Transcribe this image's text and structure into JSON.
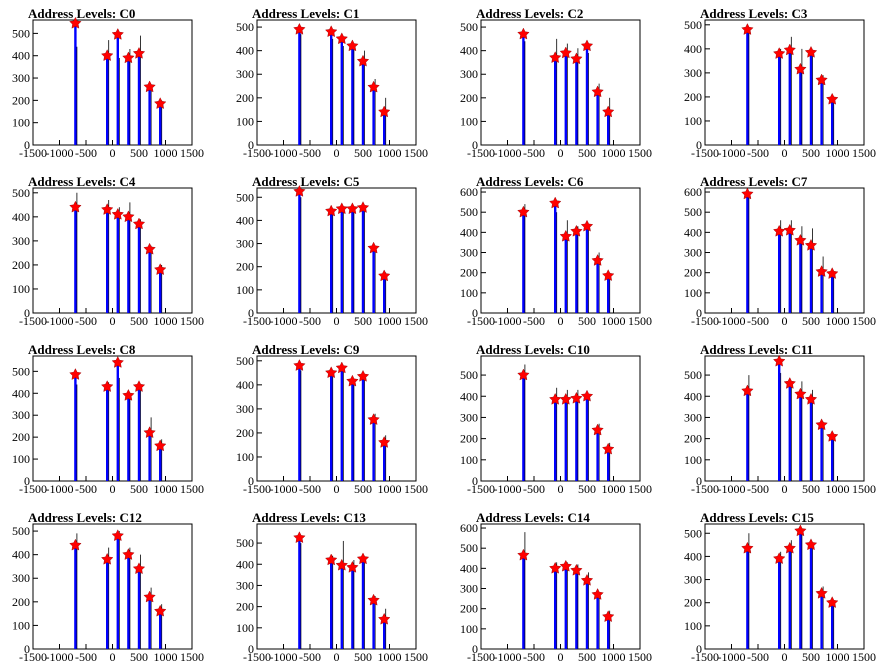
{
  "chart_data": [
    {
      "type": "bar",
      "title": "Address Levels: C0",
      "xlim": [
        -1500,
        1500
      ],
      "ylim": [
        0,
        560
      ],
      "xticks": [
        -1500,
        -1000,
        -500,
        0,
        500,
        1000,
        1500
      ],
      "yticks": [
        0,
        100,
        200,
        300,
        400,
        500
      ],
      "peaks": [
        {
          "x": -700,
          "y": 545,
          "bar": 440
        },
        {
          "x": -100,
          "y": 400,
          "bar": 470
        },
        {
          "x": 100,
          "y": 495,
          "bar": 390
        },
        {
          "x": 300,
          "y": 390,
          "bar": 430
        },
        {
          "x": 500,
          "y": 410,
          "bar": 490
        },
        {
          "x": 700,
          "y": 260,
          "bar": 270
        },
        {
          "x": 900,
          "y": 185,
          "bar": 200
        }
      ]
    },
    {
      "type": "bar",
      "title": "Address Levels: C1",
      "xlim": [
        -1500,
        1500
      ],
      "ylim": [
        0,
        530
      ],
      "xticks": [
        -1500,
        -1000,
        -500,
        0,
        500,
        1000,
        1500
      ],
      "yticks": [
        0,
        100,
        200,
        300,
        400,
        500
      ],
      "peaks": [
        {
          "x": -700,
          "y": 490,
          "bar": 470
        },
        {
          "x": -100,
          "y": 480,
          "bar": 450
        },
        {
          "x": 100,
          "y": 450,
          "bar": 420
        },
        {
          "x": 300,
          "y": 420,
          "bar": 420
        },
        {
          "x": 500,
          "y": 355,
          "bar": 400
        },
        {
          "x": 700,
          "y": 245,
          "bar": 280
        },
        {
          "x": 900,
          "y": 140,
          "bar": 200
        }
      ]
    },
    {
      "type": "bar",
      "title": "Address Levels: C2",
      "xlim": [
        -1500,
        1500
      ],
      "ylim": [
        0,
        530
      ],
      "xticks": [
        -1500,
        -1000,
        -500,
        0,
        500,
        1000,
        1500
      ],
      "yticks": [
        0,
        100,
        200,
        300,
        400,
        500
      ],
      "peaks": [
        {
          "x": -700,
          "y": 470,
          "bar": 440
        },
        {
          "x": -100,
          "y": 370,
          "bar": 450
        },
        {
          "x": 100,
          "y": 390,
          "bar": 430
        },
        {
          "x": 300,
          "y": 365,
          "bar": 410
        },
        {
          "x": 500,
          "y": 420,
          "bar": 390
        },
        {
          "x": 700,
          "y": 225,
          "bar": 260
        },
        {
          "x": 900,
          "y": 140,
          "bar": 200
        }
      ]
    },
    {
      "type": "bar",
      "title": "Address Levels: C3",
      "xlim": [
        -1500,
        1500
      ],
      "ylim": [
        0,
        520
      ],
      "xticks": [
        -1500,
        -1000,
        -500,
        0,
        500,
        1000,
        1500
      ],
      "yticks": [
        0,
        100,
        200,
        300,
        400,
        500
      ],
      "peaks": [
        {
          "x": -700,
          "y": 480,
          "bar": 490
        },
        {
          "x": -100,
          "y": 380,
          "bar": 400
        },
        {
          "x": 100,
          "y": 395,
          "bar": 450
        },
        {
          "x": 300,
          "y": 315,
          "bar": 400
        },
        {
          "x": 500,
          "y": 385,
          "bar": 390
        },
        {
          "x": 700,
          "y": 270,
          "bar": 290
        },
        {
          "x": 900,
          "y": 190,
          "bar": 200
        }
      ]
    },
    {
      "type": "bar",
      "title": "Address Levels: C4",
      "xlim": [
        -1500,
        1500
      ],
      "ylim": [
        0,
        520
      ],
      "xticks": [
        -1500,
        -1000,
        -500,
        0,
        500,
        1000,
        1500
      ],
      "yticks": [
        0,
        100,
        200,
        300,
        400,
        500
      ],
      "peaks": [
        {
          "x": -700,
          "y": 440,
          "bar": 500
        },
        {
          "x": -100,
          "y": 430,
          "bar": 470
        },
        {
          "x": 100,
          "y": 410,
          "bar": 440
        },
        {
          "x": 300,
          "y": 400,
          "bar": 460
        },
        {
          "x": 500,
          "y": 370,
          "bar": 390
        },
        {
          "x": 700,
          "y": 265,
          "bar": 280
        },
        {
          "x": 900,
          "y": 180,
          "bar": 200
        }
      ]
    },
    {
      "type": "bar",
      "title": "Address Levels: C5",
      "xlim": [
        -1500,
        1500
      ],
      "ylim": [
        0,
        540
      ],
      "xticks": [
        -1500,
        -1000,
        -500,
        0,
        500,
        1000,
        1500
      ],
      "yticks": [
        0,
        100,
        200,
        300,
        400,
        500
      ],
      "peaks": [
        {
          "x": -700,
          "y": 525,
          "bar": 500
        },
        {
          "x": -100,
          "y": 440,
          "bar": 450
        },
        {
          "x": 100,
          "y": 450,
          "bar": 450
        },
        {
          "x": 300,
          "y": 450,
          "bar": 440
        },
        {
          "x": 500,
          "y": 455,
          "bar": 440
        },
        {
          "x": 700,
          "y": 280,
          "bar": 280
        },
        {
          "x": 900,
          "y": 160,
          "bar": 175
        }
      ]
    },
    {
      "type": "bar",
      "title": "Address Levels: C6",
      "xlim": [
        -1500,
        1500
      ],
      "ylim": [
        0,
        620
      ],
      "xticks": [
        -1500,
        -1000,
        -500,
        0,
        500,
        1000,
        1500
      ],
      "yticks": [
        0,
        100,
        200,
        300,
        400,
        500,
        600
      ],
      "peaks": [
        {
          "x": -700,
          "y": 500,
          "bar": 540
        },
        {
          "x": -100,
          "y": 545,
          "bar": 500
        },
        {
          "x": 100,
          "y": 380,
          "bar": 460
        },
        {
          "x": 300,
          "y": 405,
          "bar": 430
        },
        {
          "x": 500,
          "y": 430,
          "bar": 430
        },
        {
          "x": 700,
          "y": 260,
          "bar": 300
        },
        {
          "x": 900,
          "y": 185,
          "bar": 200
        }
      ]
    },
    {
      "type": "bar",
      "title": "Address Levels: C7",
      "xlim": [
        -1500,
        1500
      ],
      "ylim": [
        0,
        620
      ],
      "xticks": [
        -1500,
        -1000,
        -500,
        0,
        500,
        1000,
        1500
      ],
      "yticks": [
        0,
        100,
        200,
        300,
        400,
        500,
        600
      ],
      "peaks": [
        {
          "x": -700,
          "y": 590,
          "bar": 600
        },
        {
          "x": -100,
          "y": 405,
          "bar": 460
        },
        {
          "x": 100,
          "y": 410,
          "bar": 460
        },
        {
          "x": 300,
          "y": 360,
          "bar": 430
        },
        {
          "x": 500,
          "y": 335,
          "bar": 420
        },
        {
          "x": 700,
          "y": 205,
          "bar": 280
        },
        {
          "x": 900,
          "y": 195,
          "bar": 200
        }
      ]
    },
    {
      "type": "bar",
      "title": "Address Levels: C8",
      "xlim": [
        -1500,
        1500
      ],
      "ylim": [
        0,
        570
      ],
      "xticks": [
        -1500,
        -1000,
        -500,
        0,
        500,
        1000,
        1500
      ],
      "yticks": [
        0,
        100,
        200,
        300,
        400,
        500
      ],
      "peaks": [
        {
          "x": -700,
          "y": 485,
          "bar": 440
        },
        {
          "x": -100,
          "y": 430,
          "bar": 450
        },
        {
          "x": 100,
          "y": 540,
          "bar": 470
        },
        {
          "x": 300,
          "y": 390,
          "bar": 400
        },
        {
          "x": 500,
          "y": 430,
          "bar": 420
        },
        {
          "x": 700,
          "y": 220,
          "bar": 290
        },
        {
          "x": 900,
          "y": 160,
          "bar": 190
        }
      ]
    },
    {
      "type": "bar",
      "title": "Address Levels: C9",
      "xlim": [
        -1500,
        1500
      ],
      "ylim": [
        0,
        520
      ],
      "xticks": [
        -1500,
        -1000,
        -500,
        0,
        500,
        1000,
        1500
      ],
      "yticks": [
        0,
        100,
        200,
        300,
        400,
        500
      ],
      "peaks": [
        {
          "x": -700,
          "y": 480,
          "bar": 460
        },
        {
          "x": -100,
          "y": 450,
          "bar": 460
        },
        {
          "x": 100,
          "y": 470,
          "bar": 470
        },
        {
          "x": 300,
          "y": 415,
          "bar": 410
        },
        {
          "x": 500,
          "y": 435,
          "bar": 440
        },
        {
          "x": 700,
          "y": 255,
          "bar": 280
        },
        {
          "x": 900,
          "y": 160,
          "bar": 190
        }
      ]
    },
    {
      "type": "bar",
      "title": "Address Levels: C10",
      "xlim": [
        -1500,
        1500
      ],
      "ylim": [
        0,
        590
      ],
      "xticks": [
        -1500,
        -1000,
        -500,
        0,
        500,
        1000,
        1500
      ],
      "yticks": [
        0,
        100,
        200,
        300,
        400,
        500
      ],
      "peaks": [
        {
          "x": -700,
          "y": 500,
          "bar": 550
        },
        {
          "x": -100,
          "y": 385,
          "bar": 440
        },
        {
          "x": 100,
          "y": 385,
          "bar": 430
        },
        {
          "x": 300,
          "y": 390,
          "bar": 430
        },
        {
          "x": 500,
          "y": 400,
          "bar": 410
        },
        {
          "x": 700,
          "y": 240,
          "bar": 270
        },
        {
          "x": 900,
          "y": 150,
          "bar": 180
        }
      ]
    },
    {
      "type": "bar",
      "title": "Address Levels: C11",
      "xlim": [
        -1500,
        1500
      ],
      "ylim": [
        0,
        590
      ],
      "xticks": [
        -1500,
        -1000,
        -500,
        0,
        500,
        1000,
        1500
      ],
      "yticks": [
        0,
        100,
        200,
        300,
        400,
        500
      ],
      "peaks": [
        {
          "x": -700,
          "y": 425,
          "bar": 500
        },
        {
          "x": -100,
          "y": 565,
          "bar": 510
        },
        {
          "x": 100,
          "y": 460,
          "bar": 470
        },
        {
          "x": 300,
          "y": 410,
          "bar": 470
        },
        {
          "x": 500,
          "y": 385,
          "bar": 430
        },
        {
          "x": 700,
          "y": 265,
          "bar": 280
        },
        {
          "x": 900,
          "y": 210,
          "bar": 210
        }
      ]
    },
    {
      "type": "bar",
      "title": "Address Levels: C12",
      "xlim": [
        -1500,
        1500
      ],
      "ylim": [
        0,
        530
      ],
      "xticks": [
        -1500,
        -1000,
        -500,
        0,
        500,
        1000,
        1500
      ],
      "yticks": [
        0,
        100,
        200,
        300,
        400,
        500
      ],
      "peaks": [
        {
          "x": -700,
          "y": 440,
          "bar": 490
        },
        {
          "x": -100,
          "y": 380,
          "bar": 430
        },
        {
          "x": 100,
          "y": 480,
          "bar": 500
        },
        {
          "x": 300,
          "y": 400,
          "bar": 430
        },
        {
          "x": 500,
          "y": 340,
          "bar": 400
        },
        {
          "x": 700,
          "y": 220,
          "bar": 260
        },
        {
          "x": 900,
          "y": 160,
          "bar": 190
        }
      ]
    },
    {
      "type": "bar",
      "title": "Address Levels: C13",
      "xlim": [
        -1500,
        1500
      ],
      "ylim": [
        0,
        590
      ],
      "xticks": [
        -1500,
        -1000,
        -500,
        0,
        500,
        1000,
        1500
      ],
      "yticks": [
        0,
        100,
        200,
        300,
        400,
        500
      ],
      "peaks": [
        {
          "x": -700,
          "y": 525,
          "bar": 500
        },
        {
          "x": -100,
          "y": 420,
          "bar": 440
        },
        {
          "x": 100,
          "y": 395,
          "bar": 510
        },
        {
          "x": 300,
          "y": 385,
          "bar": 420
        },
        {
          "x": 500,
          "y": 425,
          "bar": 420
        },
        {
          "x": 700,
          "y": 230,
          "bar": 250
        },
        {
          "x": 900,
          "y": 140,
          "bar": 190
        }
      ]
    },
    {
      "type": "bar",
      "title": "Address Levels: C14",
      "xlim": [
        -1500,
        1500
      ],
      "ylim": [
        0,
        620
      ],
      "xticks": [
        -1500,
        -1000,
        -500,
        0,
        500,
        1000,
        1500
      ],
      "yticks": [
        0,
        100,
        200,
        300,
        400,
        500,
        600
      ],
      "peaks": [
        {
          "x": -700,
          "y": 465,
          "bar": 580
        },
        {
          "x": -100,
          "y": 400,
          "bar": 430
        },
        {
          "x": 100,
          "y": 410,
          "bar": 430
        },
        {
          "x": 300,
          "y": 390,
          "bar": 420
        },
        {
          "x": 500,
          "y": 340,
          "bar": 380
        },
        {
          "x": 700,
          "y": 270,
          "bar": 280
        },
        {
          "x": 900,
          "y": 160,
          "bar": 190
        }
      ]
    },
    {
      "type": "bar",
      "title": "Address Levels: C15",
      "xlim": [
        -1500,
        1500
      ],
      "ylim": [
        0,
        540
      ],
      "xticks": [
        -1500,
        -1000,
        -500,
        0,
        500,
        1000,
        1500
      ],
      "yticks": [
        0,
        100,
        200,
        300,
        400,
        500
      ],
      "peaks": [
        {
          "x": -700,
          "y": 435,
          "bar": 500
        },
        {
          "x": -100,
          "y": 390,
          "bar": 420
        },
        {
          "x": 100,
          "y": 435,
          "bar": 470
        },
        {
          "x": 300,
          "y": 510,
          "bar": 510
        },
        {
          "x": 500,
          "y": 450,
          "bar": 460
        },
        {
          "x": 700,
          "y": 240,
          "bar": 270
        },
        {
          "x": 900,
          "y": 200,
          "bar": 200
        }
      ]
    }
  ],
  "colors": {
    "bar_blue": "#0000ff",
    "spike_black": "#000000",
    "marker_red": "#ff0000"
  }
}
